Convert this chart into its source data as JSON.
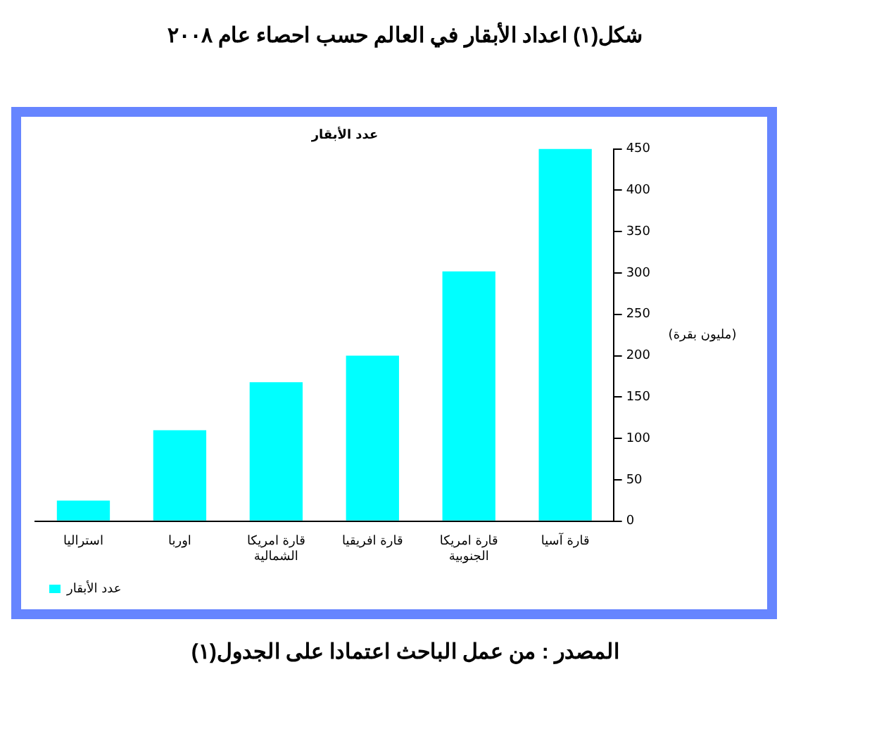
{
  "chart_data": {
    "type": "bar",
    "title": "عدد الأبقار",
    "ylabel": "(مليون بقرة)",
    "annotations": [
      "شكل(١) اعداد الأبقار في العالم حسب احصاء عام ٢٠٠٨",
      "المصدر : من عمل الباحث  اعتمادا على الجدول(١)"
    ],
    "categories": [
      "استراليا",
      "اوربا",
      "قارة امريكا الشمالية",
      "قارة افريقيا",
      "قارة امريكا الجنوبية",
      "قارة آسيا"
    ],
    "series": [
      {
        "name": "عدد الأبقار",
        "color": "#00ffff",
        "values": [
          25,
          110,
          168,
          200,
          302,
          450
        ]
      }
    ],
    "ylim": [
      0,
      450
    ],
    "yticks": [
      0,
      50,
      100,
      150,
      200,
      250,
      300,
      350,
      400,
      450
    ],
    "grid": false,
    "legend": "bottom left"
  }
}
